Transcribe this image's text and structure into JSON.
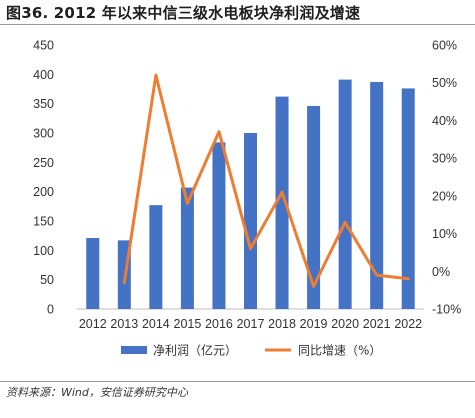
{
  "figure": {
    "title": "图36. 2012 年以来中信三级水电板块净利润及增速",
    "source": "资料来源：Wind，安信证券研究中心"
  },
  "colors": {
    "bar": "#4472C4",
    "line": "#ED7D31",
    "text": "#333333"
  },
  "chart_data": {
    "type": "bar",
    "title": "",
    "xlabel": "",
    "ylabel": "",
    "categories": [
      "2012",
      "2013",
      "2014",
      "2015",
      "2016",
      "2017",
      "2018",
      "2019",
      "2020",
      "2021",
      "2022"
    ],
    "series": [
      {
        "name": "净利润（亿元）",
        "type": "bar",
        "axis": "left",
        "values": [
          121,
          117,
          177,
          207,
          284,
          300,
          362,
          346,
          391,
          387,
          376
        ]
      },
      {
        "name": "同比增速（%）",
        "type": "line",
        "axis": "right",
        "values": [
          null,
          -3,
          52,
          18,
          37,
          6,
          21,
          -4,
          13,
          -1,
          -2
        ]
      }
    ],
    "y_left": {
      "min": 0,
      "max": 450,
      "step": 50,
      "ticks": [
        "0",
        "50",
        "100",
        "150",
        "200",
        "250",
        "300",
        "350",
        "400",
        "450"
      ]
    },
    "y_right": {
      "min": -10,
      "max": 60,
      "step": 10,
      "ticks": [
        "-10%",
        "0%",
        "10%",
        "20%",
        "30%",
        "40%",
        "50%",
        "60%"
      ]
    },
    "grid": false,
    "legend_position": "bottom"
  }
}
